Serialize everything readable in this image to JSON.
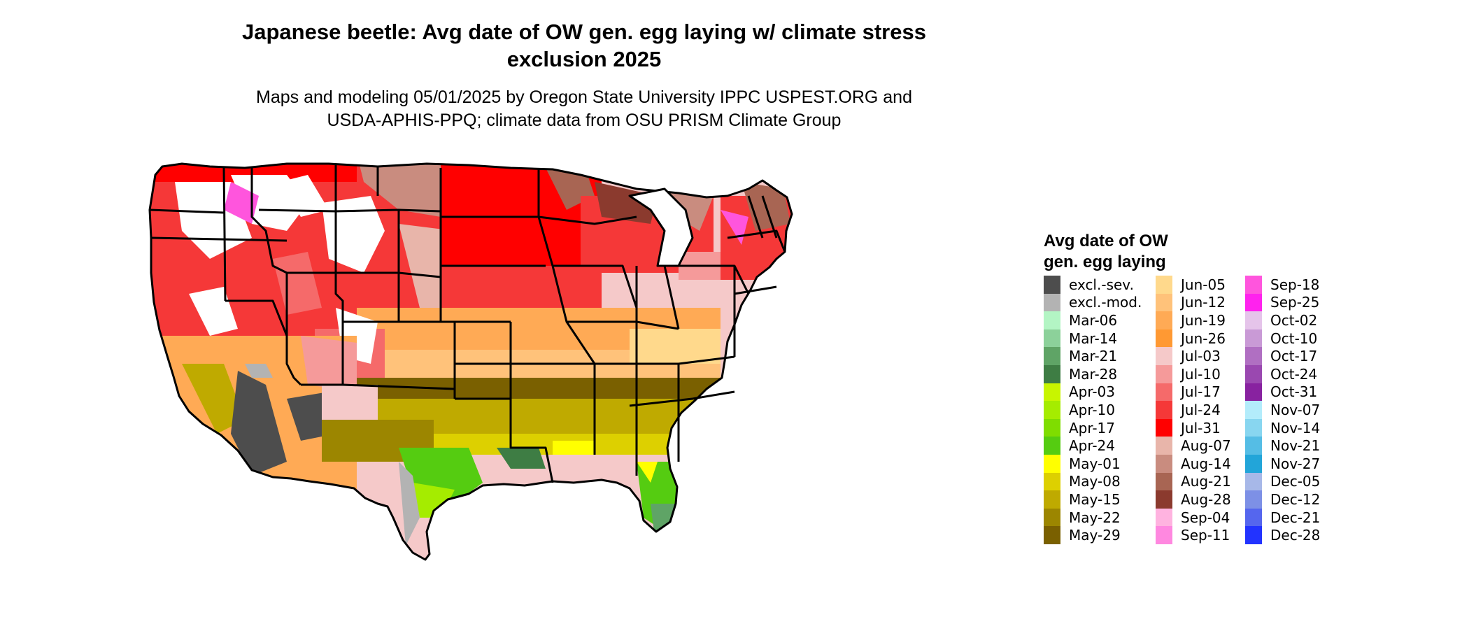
{
  "title": {
    "line1": "Japanese beetle: Avg date of OW gen. egg laying w/ climate stress",
    "line2": "exclusion 2025"
  },
  "subtitle": {
    "line1": "Maps and modeling 05/01/2025 by Oregon State University IPPC USPEST.ORG and",
    "line2": "USDA-APHIS-PPQ; climate data from OSU PRISM Climate Group"
  },
  "legend": {
    "title_line1": "Avg date of OW",
    "title_line2": "gen. egg laying",
    "columns": [
      [
        {
          "label": "excl.-sev.",
          "color": "#4d4d4d"
        },
        {
          "label": "excl.-mod.",
          "color": "#b3b3b3"
        },
        {
          "label": "Mar-06",
          "color": "#b3f5c4"
        },
        {
          "label": "Mar-14",
          "color": "#8cd19a"
        },
        {
          "label": "Mar-21",
          "color": "#5fa466"
        },
        {
          "label": "Mar-28",
          "color": "#3e7d44"
        },
        {
          "label": "Apr-03",
          "color": "#c8f500"
        },
        {
          "label": "Apr-10",
          "color": "#a5ec00"
        },
        {
          "label": "Apr-17",
          "color": "#7fdd00"
        },
        {
          "label": "Apr-24",
          "color": "#55cc11"
        },
        {
          "label": "May-01",
          "color": "#ffff00"
        },
        {
          "label": "May-08",
          "color": "#ddd000"
        },
        {
          "label": "May-15",
          "color": "#bfaa00"
        },
        {
          "label": "May-22",
          "color": "#9c8600"
        },
        {
          "label": "May-29",
          "color": "#7a6000"
        }
      ],
      [
        {
          "label": "Jun-05",
          "color": "#ffd98c"
        },
        {
          "label": "Jun-12",
          "color": "#ffc27a"
        },
        {
          "label": "Jun-19",
          "color": "#ffaa55"
        },
        {
          "label": "Jun-26",
          "color": "#ff9933"
        },
        {
          "label": "Jul-03",
          "color": "#f5c9c9"
        },
        {
          "label": "Jul-10",
          "color": "#f59a9a"
        },
        {
          "label": "Jul-17",
          "color": "#f56a6a"
        },
        {
          "label": "Jul-24",
          "color": "#f53838"
        },
        {
          "label": "Jul-31",
          "color": "#ff0000"
        },
        {
          "label": "Aug-07",
          "color": "#e8b5aa"
        },
        {
          "label": "Aug-14",
          "color": "#c98c7f"
        },
        {
          "label": "Aug-21",
          "color": "#a86553"
        },
        {
          "label": "Aug-28",
          "color": "#8b3a2e"
        },
        {
          "label": "Sep-04",
          "color": "#ffb3e0"
        },
        {
          "label": "Sep-11",
          "color": "#ff88e0"
        }
      ],
      [
        {
          "label": "Sep-18",
          "color": "#ff55dd"
        },
        {
          "label": "Sep-25",
          "color": "#ff22ee"
        },
        {
          "label": "Oct-02",
          "color": "#e5c4ea"
        },
        {
          "label": "Oct-10",
          "color": "#c99ad6"
        },
        {
          "label": "Oct-17",
          "color": "#b06fc2"
        },
        {
          "label": "Oct-24",
          "color": "#9a48b0"
        },
        {
          "label": "Oct-31",
          "color": "#8822a0"
        },
        {
          "label": "Nov-07",
          "color": "#b3ecfb"
        },
        {
          "label": "Nov-14",
          "color": "#88d6f0"
        },
        {
          "label": "Nov-21",
          "color": "#55bde5"
        },
        {
          "label": "Nov-27",
          "color": "#22a5d9"
        },
        {
          "label": "Dec-05",
          "color": "#a7b8e8"
        },
        {
          "label": "Dec-12",
          "color": "#7d90e6"
        },
        {
          "label": "Dec-21",
          "color": "#5566ee"
        },
        {
          "label": "Dec-28",
          "color": "#2233ff"
        }
      ]
    ]
  },
  "map_colors": {
    "white_land": "#ffffff",
    "excl_sev": "#4d4d4d",
    "excl_mod": "#b3b3b3",
    "border": "#000000"
  }
}
